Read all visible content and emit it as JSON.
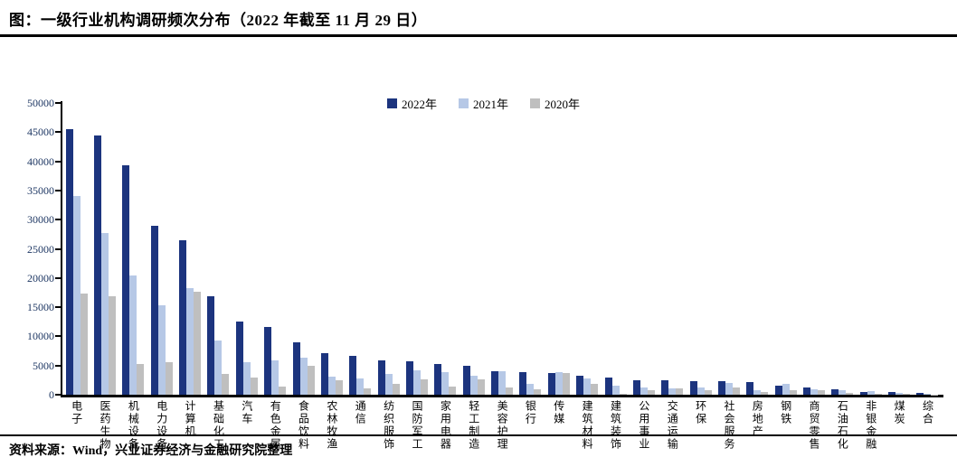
{
  "title": "图：一级行业机构调研频次分布（2022 年截至 11 月 29 日）",
  "source": "资料来源：Wind，兴业证券经济与金融研究院整理",
  "colors": {
    "series_2022": "#1C347E",
    "series_2021": "#B6C8E6",
    "series_2020": "#BFBFBF",
    "axis": "#000000",
    "ytick_label": "#1F3864",
    "title_text": "#000000"
  },
  "chart_data": {
    "type": "bar",
    "title": "一级行业机构调研频次分布（2022年截至11月29日）",
    "xlabel": "",
    "ylabel": "",
    "ylim": [
      0,
      50000
    ],
    "ytick_step": 5000,
    "yticks": [
      "50000",
      "45000",
      "40000",
      "35000",
      "30000",
      "25000",
      "20000",
      "15000",
      "10000",
      "5000",
      "0"
    ],
    "grid": false,
    "legend_position": "top-center",
    "categories": [
      "电子",
      "医药生物",
      "机械设备",
      "电力设备",
      "计算机",
      "基础化工",
      "汽车",
      "有色金属",
      "食品饮料",
      "农林牧渔",
      "通信",
      "纺织服饰",
      "国防军工",
      "家用电器",
      "轻工制造",
      "美容护理",
      "银行",
      "传媒",
      "建筑材料",
      "建筑装饰",
      "公用事业",
      "交通运输",
      "环保",
      "社会服务",
      "房地产",
      "钢铁",
      "商贸零售",
      "石油石化",
      "非银金融",
      "煤炭",
      "综合"
    ],
    "series": [
      {
        "name": "2022年",
        "color": "#1C347E",
        "values": [
          45500,
          44500,
          39300,
          28900,
          26400,
          16900,
          12500,
          11600,
          9000,
          7200,
          6600,
          5900,
          5700,
          5300,
          4900,
          4000,
          3800,
          3700,
          3300,
          2900,
          2500,
          2450,
          2400,
          2300,
          2100,
          1550,
          1300,
          950,
          500,
          400,
          250
        ]
      },
      {
        "name": "2021年",
        "color": "#B6C8E6",
        "values": [
          34000,
          27700,
          20400,
          15400,
          18300,
          9300,
          5600,
          5900,
          6300,
          3100,
          2800,
          3500,
          4200,
          3900,
          3300,
          4100,
          1800,
          3800,
          2800,
          1600,
          1200,
          1100,
          1300,
          2000,
          700,
          1800,
          1000,
          700,
          600,
          300,
          150
        ]
      },
      {
        "name": "2020年",
        "color": "#BFBFBF",
        "values": [
          17300,
          16900,
          5300,
          5500,
          17600,
          3600,
          3000,
          1400,
          5000,
          2500,
          1100,
          1900,
          2700,
          1400,
          2600,
          1200,
          900,
          3700,
          1900,
          200,
          850,
          1150,
          800,
          1300,
          500,
          800,
          700,
          250,
          150,
          100,
          50
        ]
      }
    ]
  }
}
